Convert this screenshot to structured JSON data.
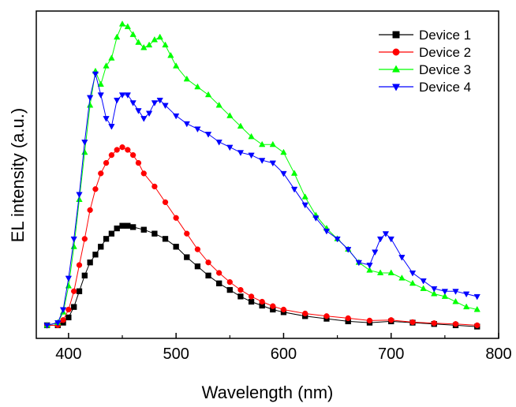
{
  "chart_data": {
    "type": "scatter",
    "xlabel": "Wavelength (nm)",
    "ylabel": "EL intensity (a.u.)",
    "xlim": [
      370,
      800
    ],
    "ylim": [
      -0.05,
      1.2
    ],
    "x_ticks": [
      400,
      500,
      600,
      700,
      800
    ],
    "y_tick_labels": "none",
    "grid": false,
    "legend_position": "top-right",
    "series": [
      {
        "name": "Device 1",
        "color": "#000000",
        "marker": "square",
        "points": [
          [
            380,
            0.0
          ],
          [
            390,
            0.0
          ],
          [
            395,
            0.01
          ],
          [
            400,
            0.03
          ],
          [
            405,
            0.07
          ],
          [
            410,
            0.13
          ],
          [
            415,
            0.19
          ],
          [
            420,
            0.24
          ],
          [
            425,
            0.27
          ],
          [
            430,
            0.3
          ],
          [
            435,
            0.33
          ],
          [
            440,
            0.35
          ],
          [
            445,
            0.37
          ],
          [
            450,
            0.38
          ],
          [
            455,
            0.38
          ],
          [
            460,
            0.375
          ],
          [
            470,
            0.365
          ],
          [
            480,
            0.35
          ],
          [
            490,
            0.33
          ],
          [
            500,
            0.3
          ],
          [
            510,
            0.26
          ],
          [
            520,
            0.225
          ],
          [
            530,
            0.19
          ],
          [
            540,
            0.16
          ],
          [
            550,
            0.135
          ],
          [
            560,
            0.11
          ],
          [
            570,
            0.09
          ],
          [
            580,
            0.075
          ],
          [
            590,
            0.06
          ],
          [
            600,
            0.05
          ],
          [
            620,
            0.035
          ],
          [
            640,
            0.025
          ],
          [
            660,
            0.015
          ],
          [
            680,
            0.01
          ],
          [
            700,
            0.015
          ],
          [
            720,
            0.01
          ],
          [
            740,
            0.005
          ],
          [
            760,
            0.0
          ],
          [
            780,
            -0.005
          ]
        ]
      },
      {
        "name": "Device 2",
        "color": "#ff0000",
        "marker": "circle",
        "points": [
          [
            380,
            0.0
          ],
          [
            390,
            0.0
          ],
          [
            395,
            0.02
          ],
          [
            400,
            0.06
          ],
          [
            405,
            0.13
          ],
          [
            410,
            0.23
          ],
          [
            415,
            0.33
          ],
          [
            420,
            0.44
          ],
          [
            425,
            0.52
          ],
          [
            430,
            0.58
          ],
          [
            435,
            0.62
          ],
          [
            440,
            0.65
          ],
          [
            445,
            0.67
          ],
          [
            450,
            0.68
          ],
          [
            455,
            0.67
          ],
          [
            460,
            0.65
          ],
          [
            465,
            0.62
          ],
          [
            470,
            0.58
          ],
          [
            480,
            0.53
          ],
          [
            490,
            0.47
          ],
          [
            500,
            0.41
          ],
          [
            510,
            0.35
          ],
          [
            520,
            0.29
          ],
          [
            530,
            0.24
          ],
          [
            540,
            0.2
          ],
          [
            550,
            0.165
          ],
          [
            560,
            0.135
          ],
          [
            570,
            0.11
          ],
          [
            580,
            0.09
          ],
          [
            590,
            0.073
          ],
          [
            600,
            0.06
          ],
          [
            620,
            0.045
          ],
          [
            640,
            0.035
          ],
          [
            660,
            0.027
          ],
          [
            680,
            0.018
          ],
          [
            700,
            0.02
          ],
          [
            720,
            0.012
          ],
          [
            740,
            0.008
          ],
          [
            760,
            0.005
          ],
          [
            780,
            0.0
          ]
        ]
      },
      {
        "name": "Device 3",
        "color": "#00ff00",
        "marker": "triangle-up",
        "points": [
          [
            380,
            0.0
          ],
          [
            390,
            0.01
          ],
          [
            395,
            0.05
          ],
          [
            400,
            0.15
          ],
          [
            405,
            0.3
          ],
          [
            410,
            0.48
          ],
          [
            415,
            0.66
          ],
          [
            420,
            0.84
          ],
          [
            425,
            0.97
          ],
          [
            430,
            0.92
          ],
          [
            435,
            0.99
          ],
          [
            440,
            1.02
          ],
          [
            445,
            1.1
          ],
          [
            450,
            1.15
          ],
          [
            455,
            1.14
          ],
          [
            460,
            1.11
          ],
          [
            465,
            1.08
          ],
          [
            470,
            1.06
          ],
          [
            475,
            1.07
          ],
          [
            480,
            1.09
          ],
          [
            485,
            1.1
          ],
          [
            490,
            1.07
          ],
          [
            495,
            1.03
          ],
          [
            500,
            0.99
          ],
          [
            510,
            0.94
          ],
          [
            520,
            0.91
          ],
          [
            530,
            0.88
          ],
          [
            540,
            0.84
          ],
          [
            550,
            0.8
          ],
          [
            560,
            0.76
          ],
          [
            570,
            0.72
          ],
          [
            580,
            0.69
          ],
          [
            590,
            0.69
          ],
          [
            600,
            0.66
          ],
          [
            610,
            0.58
          ],
          [
            620,
            0.49
          ],
          [
            630,
            0.42
          ],
          [
            640,
            0.37
          ],
          [
            650,
            0.33
          ],
          [
            660,
            0.29
          ],
          [
            670,
            0.24
          ],
          [
            680,
            0.21
          ],
          [
            690,
            0.2
          ],
          [
            700,
            0.2
          ],
          [
            710,
            0.18
          ],
          [
            720,
            0.16
          ],
          [
            730,
            0.14
          ],
          [
            740,
            0.12
          ],
          [
            750,
            0.11
          ],
          [
            760,
            0.09
          ],
          [
            770,
            0.07
          ],
          [
            780,
            0.06
          ]
        ]
      },
      {
        "name": "Device 4",
        "color": "#0000ff",
        "marker": "triangle-down",
        "points": [
          [
            380,
            0.0
          ],
          [
            390,
            0.01
          ],
          [
            395,
            0.06
          ],
          [
            400,
            0.18
          ],
          [
            405,
            0.33
          ],
          [
            410,
            0.5
          ],
          [
            415,
            0.7
          ],
          [
            420,
            0.87
          ],
          [
            425,
            0.96
          ],
          [
            430,
            0.88
          ],
          [
            435,
            0.79
          ],
          [
            440,
            0.76
          ],
          [
            445,
            0.86
          ],
          [
            450,
            0.88
          ],
          [
            455,
            0.88
          ],
          [
            460,
            0.85
          ],
          [
            465,
            0.82
          ],
          [
            470,
            0.79
          ],
          [
            475,
            0.81
          ],
          [
            480,
            0.85
          ],
          [
            485,
            0.86
          ],
          [
            490,
            0.84
          ],
          [
            500,
            0.8
          ],
          [
            510,
            0.77
          ],
          [
            520,
            0.75
          ],
          [
            530,
            0.73
          ],
          [
            540,
            0.7
          ],
          [
            550,
            0.68
          ],
          [
            560,
            0.66
          ],
          [
            570,
            0.65
          ],
          [
            580,
            0.63
          ],
          [
            590,
            0.62
          ],
          [
            600,
            0.58
          ],
          [
            610,
            0.52
          ],
          [
            620,
            0.46
          ],
          [
            630,
            0.41
          ],
          [
            640,
            0.36
          ],
          [
            650,
            0.33
          ],
          [
            660,
            0.29
          ],
          [
            670,
            0.24
          ],
          [
            680,
            0.23
          ],
          [
            685,
            0.28
          ],
          [
            690,
            0.33
          ],
          [
            695,
            0.35
          ],
          [
            700,
            0.33
          ],
          [
            710,
            0.26
          ],
          [
            720,
            0.2
          ],
          [
            730,
            0.17
          ],
          [
            740,
            0.14
          ],
          [
            750,
            0.13
          ],
          [
            760,
            0.13
          ],
          [
            770,
            0.12
          ],
          [
            780,
            0.11
          ]
        ]
      }
    ]
  }
}
